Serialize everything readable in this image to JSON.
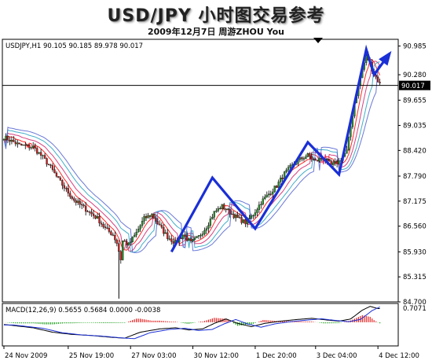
{
  "header": {
    "title": "USD/JPY 小时图交易参考",
    "subtitle": "2009年12月7日  周游ZHOU You"
  },
  "chart_data": {
    "type": "candlestick",
    "symbol_info": "USDJPY,H1  90.105 90.185 89.978 90.017",
    "price_axis": {
      "ticks": [
        "90.985",
        "90.280",
        "89.655",
        "89.035",
        "88.420",
        "87.790",
        "87.175",
        "86.560",
        "85.930",
        "85.315",
        "84.700"
      ],
      "tick_values": [
        90.985,
        90.28,
        89.655,
        89.035,
        88.42,
        87.79,
        87.175,
        86.56,
        85.93,
        85.315,
        84.7
      ],
      "range": [
        84.7,
        91.15
      ],
      "current_price": 90.017,
      "current_price_label": "90.017"
    },
    "time_axis": {
      "labels": [
        "24 Nov 2009",
        "25 Nov 19:00",
        "27 Nov 03:00",
        "30 Nov 12:00",
        "1 Dec 20:00",
        "3 Dec 04:00",
        "4 Dec 12:00"
      ],
      "label_bars": [
        0,
        33,
        65,
        97,
        129,
        160,
        192
      ]
    },
    "price_path": [
      [
        0,
        88.75
      ],
      [
        8,
        88.55
      ],
      [
        15,
        88.5
      ],
      [
        20,
        88.25
      ],
      [
        24,
        88.0
      ],
      [
        28,
        87.7
      ],
      [
        32,
        87.45
      ],
      [
        36,
        87.2
      ],
      [
        40,
        87.05
      ],
      [
        44,
        86.9
      ],
      [
        48,
        86.75
      ],
      [
        52,
        86.5
      ],
      [
        56,
        86.35
      ],
      [
        58,
        86.15
      ],
      [
        60,
        85.75
      ],
      [
        61,
        86.2
      ],
      [
        64,
        86.1
      ],
      [
        68,
        86.4
      ],
      [
        72,
        86.75
      ],
      [
        76,
        86.85
      ],
      [
        80,
        86.55
      ],
      [
        84,
        86.3
      ],
      [
        88,
        86.15
      ],
      [
        92,
        86.35
      ],
      [
        96,
        86.15
      ],
      [
        100,
        86.3
      ],
      [
        104,
        86.55
      ],
      [
        108,
        86.9
      ],
      [
        112,
        87.05
      ],
      [
        116,
        86.9
      ],
      [
        120,
        86.75
      ],
      [
        124,
        86.65
      ],
      [
        128,
        86.85
      ],
      [
        132,
        87.15
      ],
      [
        136,
        87.35
      ],
      [
        140,
        87.55
      ],
      [
        144,
        87.85
      ],
      [
        148,
        88.05
      ],
      [
        152,
        88.2
      ],
      [
        156,
        88.3
      ],
      [
        160,
        88.15
      ],
      [
        164,
        88.25
      ],
      [
        168,
        88.05
      ],
      [
        172,
        88.15
      ],
      [
        176,
        88.4
      ],
      [
        180,
        89.6
      ],
      [
        184,
        90.4
      ],
      [
        186,
        90.75
      ],
      [
        188,
        90.55
      ],
      [
        190,
        90.3
      ],
      [
        193,
        90.05
      ]
    ],
    "price_extremes": {
      "low": 84.78,
      "low_bar": 59,
      "high": 90.85,
      "high_bar": 186
    },
    "moving_averages": [
      {
        "color": "#ff0000",
        "offset": 0.12,
        "smooth": 4
      },
      {
        "color": "#d0206a",
        "offset": 0.26,
        "smooth": 7
      },
      {
        "color": "#20a0c0",
        "offset": 0.42,
        "smooth": 10
      },
      {
        "color": "#5060d0",
        "offset": 0.55,
        "smooth": 13
      }
    ],
    "zigzag": {
      "color": "#1a2fd6",
      "points": [
        [
          86,
          85.93
        ],
        [
          107,
          87.75
        ],
        [
          129,
          86.5
        ],
        [
          156,
          88.62
        ],
        [
          172,
          87.83
        ],
        [
          186,
          90.9
        ],
        [
          190,
          90.28
        ],
        [
          198,
          90.8
        ]
      ]
    },
    "macd": {
      "label": "MACD(12,26,9)  0.5655 0.5684 0.0000 -0.0038",
      "axis_max_label": "0.7071",
      "range": [
        -1.0,
        0.78
      ],
      "main_path": [
        [
          0,
          -0.1
        ],
        [
          15,
          -0.25
        ],
        [
          25,
          -0.45
        ],
        [
          35,
          -0.55
        ],
        [
          45,
          -0.6
        ],
        [
          55,
          -0.68
        ],
        [
          62,
          -0.72
        ],
        [
          70,
          -0.45
        ],
        [
          80,
          -0.3
        ],
        [
          88,
          -0.25
        ],
        [
          95,
          -0.35
        ],
        [
          102,
          -0.3
        ],
        [
          108,
          -0.05
        ],
        [
          114,
          0.15
        ],
        [
          120,
          -0.05
        ],
        [
          127,
          -0.2
        ],
        [
          134,
          -0.05
        ],
        [
          142,
          0.05
        ],
        [
          150,
          0.12
        ],
        [
          158,
          0.18
        ],
        [
          166,
          0.1
        ],
        [
          172,
          0.05
        ],
        [
          178,
          0.15
        ],
        [
          184,
          0.55
        ],
        [
          188,
          0.72
        ],
        [
          192,
          0.62
        ]
      ],
      "signal_offset": 0.12
    }
  }
}
